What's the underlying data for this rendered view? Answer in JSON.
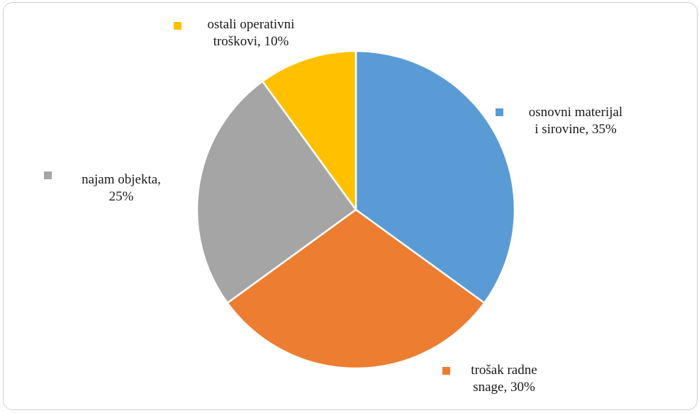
{
  "chart_data": {
    "type": "pie",
    "slices": [
      {
        "label": "osnovni materijal i sirovine",
        "value": 35,
        "value_label": "35%",
        "color": "#5B9BD5",
        "text_lines": [
          "osnovni materijal",
          "i sirovine, 35%"
        ]
      },
      {
        "label": "trošak radne snage",
        "value": 30,
        "value_label": "30%",
        "color": "#ED7D31",
        "text_lines": [
          "trošak radne",
          "snage, 30%"
        ]
      },
      {
        "label": "najam objekta",
        "value": 25,
        "value_label": "25%",
        "color": "#A5A5A5",
        "text_lines": [
          "najam objekta,",
          "25%"
        ]
      },
      {
        "label": "ostali operativni troškovi",
        "value": 10,
        "value_label": "10%",
        "color": "#FFC000",
        "text_lines": [
          "ostali operativni",
          "troškovi, 10%"
        ]
      }
    ],
    "start": "12 o'clock",
    "direction": "clockwise",
    "legend": "data labels with color markers beside each slice",
    "slice_border_color": "#ffffff"
  }
}
